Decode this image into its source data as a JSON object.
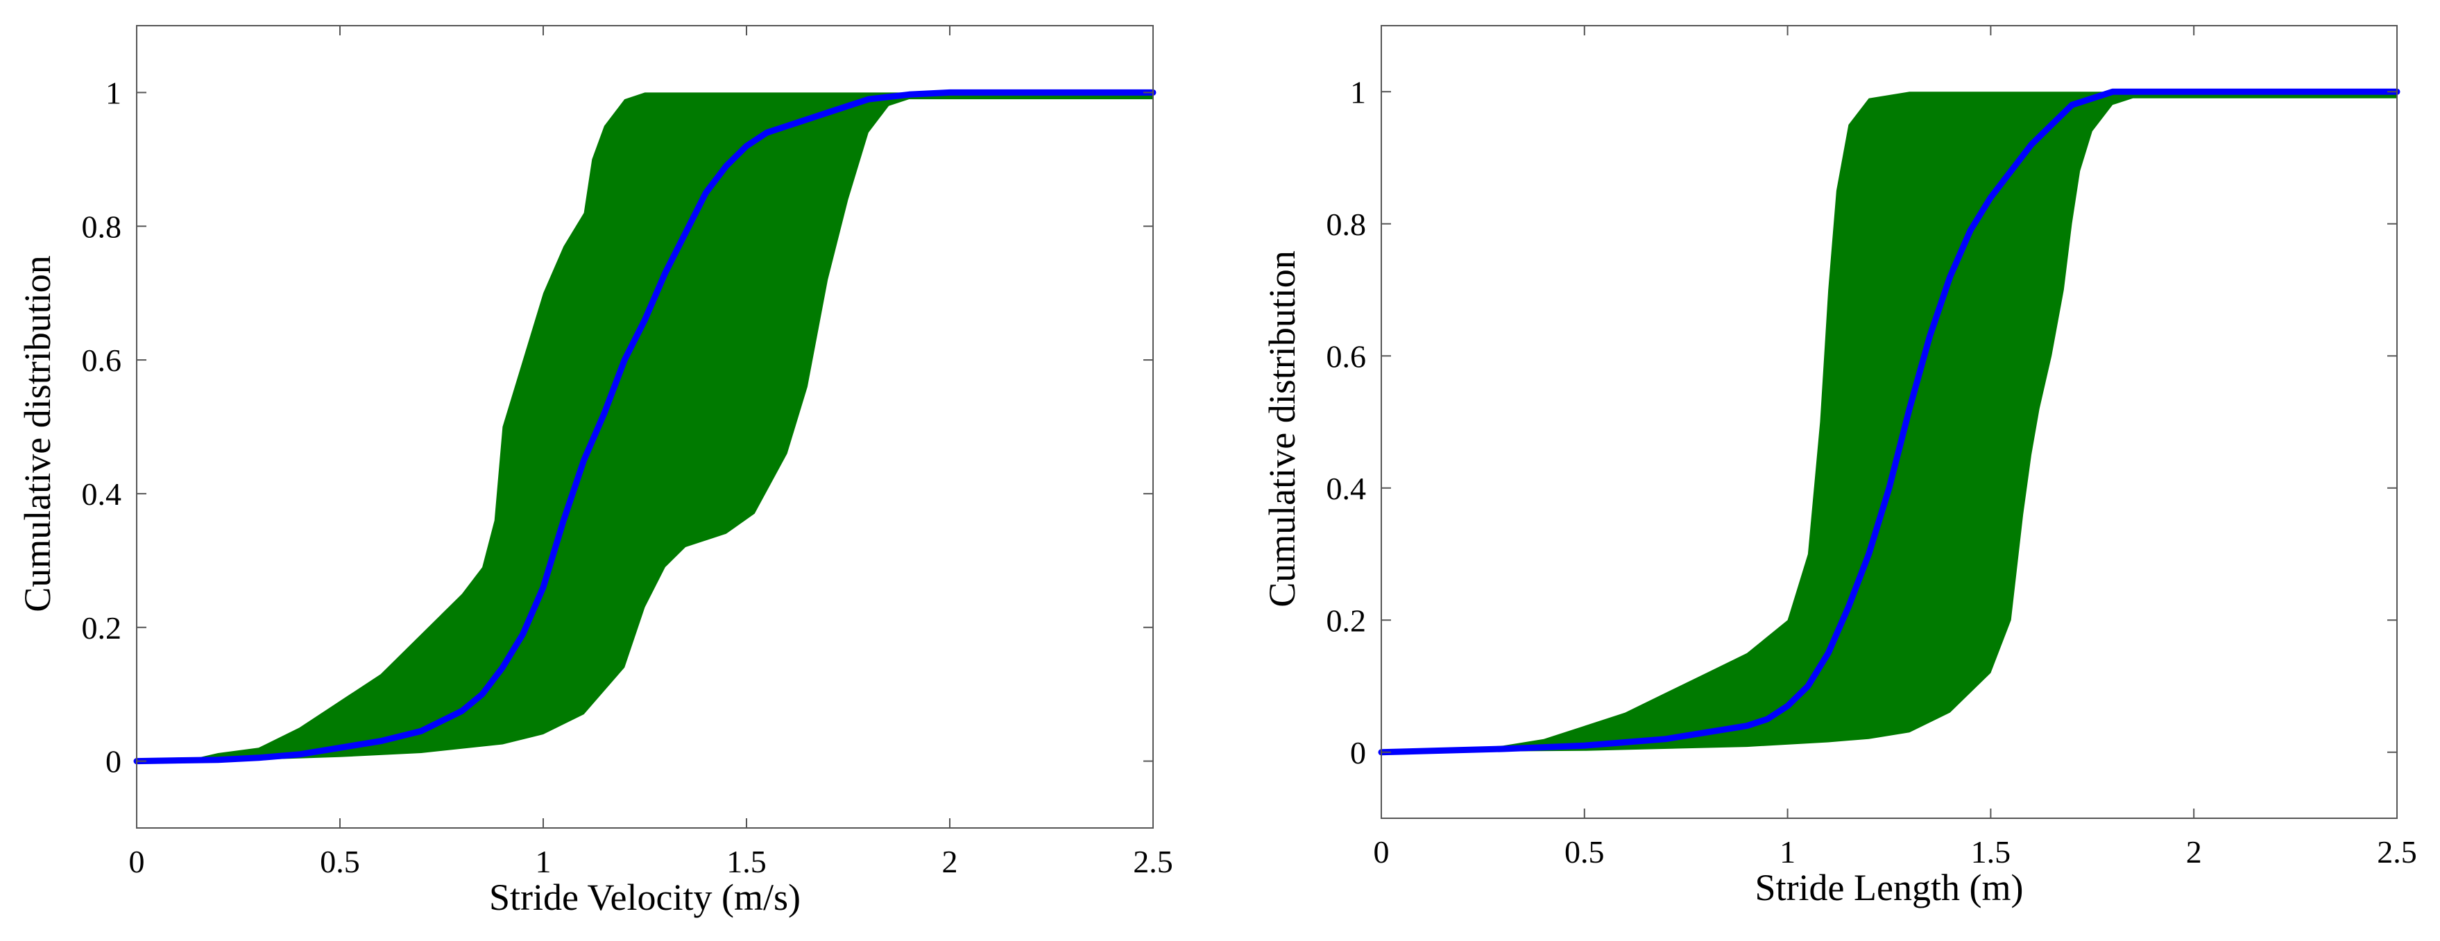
{
  "chart_data": [
    {
      "type": "area",
      "title": "",
      "xlabel": "Stride Velocity (m/s)",
      "ylabel": "Cumulative distribution",
      "xlim": [
        0,
        2.5
      ],
      "ylim": [
        -0.1,
        1.1
      ],
      "xticks": [
        "0",
        "0.5",
        "1",
        "1.5",
        "2",
        "2.5"
      ],
      "yticks": [
        "0",
        "0.2",
        "0.4",
        "0.6",
        "0.8",
        "1"
      ],
      "grid": false,
      "legend": "none",
      "colors": {
        "band": "#007a00",
        "line": "#0000ff"
      },
      "band_left": [
        [
          0,
          0
        ],
        [
          0.15,
          0.005
        ],
        [
          0.2,
          0.012
        ],
        [
          0.3,
          0.02
        ],
        [
          0.4,
          0.05
        ],
        [
          0.5,
          0.09
        ],
        [
          0.6,
          0.13
        ],
        [
          0.7,
          0.19
        ],
        [
          0.8,
          0.25
        ],
        [
          0.85,
          0.29
        ],
        [
          0.88,
          0.36
        ],
        [
          0.9,
          0.5
        ],
        [
          0.95,
          0.6
        ],
        [
          1.0,
          0.7
        ],
        [
          1.05,
          0.77
        ],
        [
          1.1,
          0.82
        ],
        [
          1.12,
          0.9
        ],
        [
          1.15,
          0.95
        ],
        [
          1.2,
          0.99
        ],
        [
          1.25,
          1.0
        ],
        [
          1.9,
          1.0
        ],
        [
          2.5,
          1.0
        ]
      ],
      "band_right": [
        [
          0,
          0
        ],
        [
          0.3,
          0.002
        ],
        [
          0.5,
          0.006
        ],
        [
          0.7,
          0.012
        ],
        [
          0.9,
          0.025
        ],
        [
          1.0,
          0.04
        ],
        [
          1.1,
          0.07
        ],
        [
          1.2,
          0.14
        ],
        [
          1.25,
          0.23
        ],
        [
          1.3,
          0.29
        ],
        [
          1.35,
          0.32
        ],
        [
          1.45,
          0.34
        ],
        [
          1.52,
          0.37
        ],
        [
          1.6,
          0.46
        ],
        [
          1.65,
          0.56
        ],
        [
          1.7,
          0.72
        ],
        [
          1.75,
          0.84
        ],
        [
          1.8,
          0.94
        ],
        [
          1.85,
          0.98
        ],
        [
          1.9,
          0.99
        ],
        [
          2.5,
          0.99
        ]
      ],
      "series": [
        {
          "x": [
            0,
            0.2,
            0.3,
            0.4,
            0.5,
            0.6,
            0.7,
            0.8,
            0.85,
            0.9,
            0.95,
            1.0,
            1.05,
            1.1,
            1.15,
            1.2,
            1.25,
            1.3,
            1.35,
            1.4,
            1.45,
            1.5,
            1.55,
            1.6,
            1.7,
            1.8,
            1.9,
            2.0,
            2.5
          ],
          "y": [
            0,
            0.002,
            0.005,
            0.01,
            0.02,
            0.03,
            0.045,
            0.075,
            0.1,
            0.14,
            0.19,
            0.26,
            0.36,
            0.45,
            0.52,
            0.6,
            0.66,
            0.73,
            0.79,
            0.85,
            0.89,
            0.92,
            0.94,
            0.95,
            0.97,
            0.99,
            0.997,
            1.0,
            1.0
          ]
        }
      ]
    },
    {
      "type": "area",
      "title": "",
      "xlabel": "Stride Length (m)",
      "ylabel": "Cumulative distribution",
      "xlim": [
        0,
        2.5
      ],
      "ylim": [
        -0.1,
        1.1
      ],
      "xticks": [
        "0",
        "0.5",
        "1",
        "1.5",
        "2",
        "2.5"
      ],
      "yticks": [
        "0",
        "0.2",
        "0.4",
        "0.6",
        "0.8",
        "1"
      ],
      "grid": false,
      "legend": "none",
      "colors": {
        "band": "#007a00",
        "line": "#0000ff"
      },
      "band_left": [
        [
          0,
          0
        ],
        [
          0.15,
          0.003
        ],
        [
          0.3,
          0.01
        ],
        [
          0.4,
          0.02
        ],
        [
          0.5,
          0.04
        ],
        [
          0.6,
          0.06
        ],
        [
          0.7,
          0.09
        ],
        [
          0.8,
          0.12
        ],
        [
          0.9,
          0.15
        ],
        [
          1.0,
          0.2
        ],
        [
          1.05,
          0.3
        ],
        [
          1.08,
          0.5
        ],
        [
          1.1,
          0.7
        ],
        [
          1.12,
          0.85
        ],
        [
          1.15,
          0.95
        ],
        [
          1.2,
          0.99
        ],
        [
          1.3,
          1.0
        ],
        [
          1.75,
          1.0
        ],
        [
          2.5,
          1.0
        ]
      ],
      "band_right": [
        [
          0,
          0
        ],
        [
          0.5,
          0.002
        ],
        [
          0.9,
          0.008
        ],
        [
          1.1,
          0.015
        ],
        [
          1.2,
          0.02
        ],
        [
          1.3,
          0.03
        ],
        [
          1.4,
          0.06
        ],
        [
          1.5,
          0.12
        ],
        [
          1.55,
          0.2
        ],
        [
          1.58,
          0.36
        ],
        [
          1.6,
          0.45
        ],
        [
          1.62,
          0.52
        ],
        [
          1.65,
          0.6
        ],
        [
          1.68,
          0.7
        ],
        [
          1.7,
          0.8
        ],
        [
          1.72,
          0.88
        ],
        [
          1.75,
          0.94
        ],
        [
          1.8,
          0.98
        ],
        [
          1.85,
          0.99
        ],
        [
          2.5,
          0.99
        ]
      ],
      "series": [
        {
          "x": [
            0,
            0.3,
            0.5,
            0.7,
            0.8,
            0.9,
            0.95,
            1.0,
            1.05,
            1.1,
            1.15,
            1.2,
            1.25,
            1.3,
            1.35,
            1.4,
            1.45,
            1.5,
            1.55,
            1.6,
            1.65,
            1.7,
            1.75,
            1.8,
            1.85,
            1.9,
            2.5
          ],
          "y": [
            0,
            0.005,
            0.01,
            0.02,
            0.03,
            0.04,
            0.05,
            0.07,
            0.1,
            0.15,
            0.22,
            0.3,
            0.4,
            0.52,
            0.63,
            0.72,
            0.79,
            0.84,
            0.88,
            0.92,
            0.95,
            0.98,
            0.99,
            1.0,
            1.0,
            1.0,
            1.0
          ]
        }
      ]
    }
  ]
}
